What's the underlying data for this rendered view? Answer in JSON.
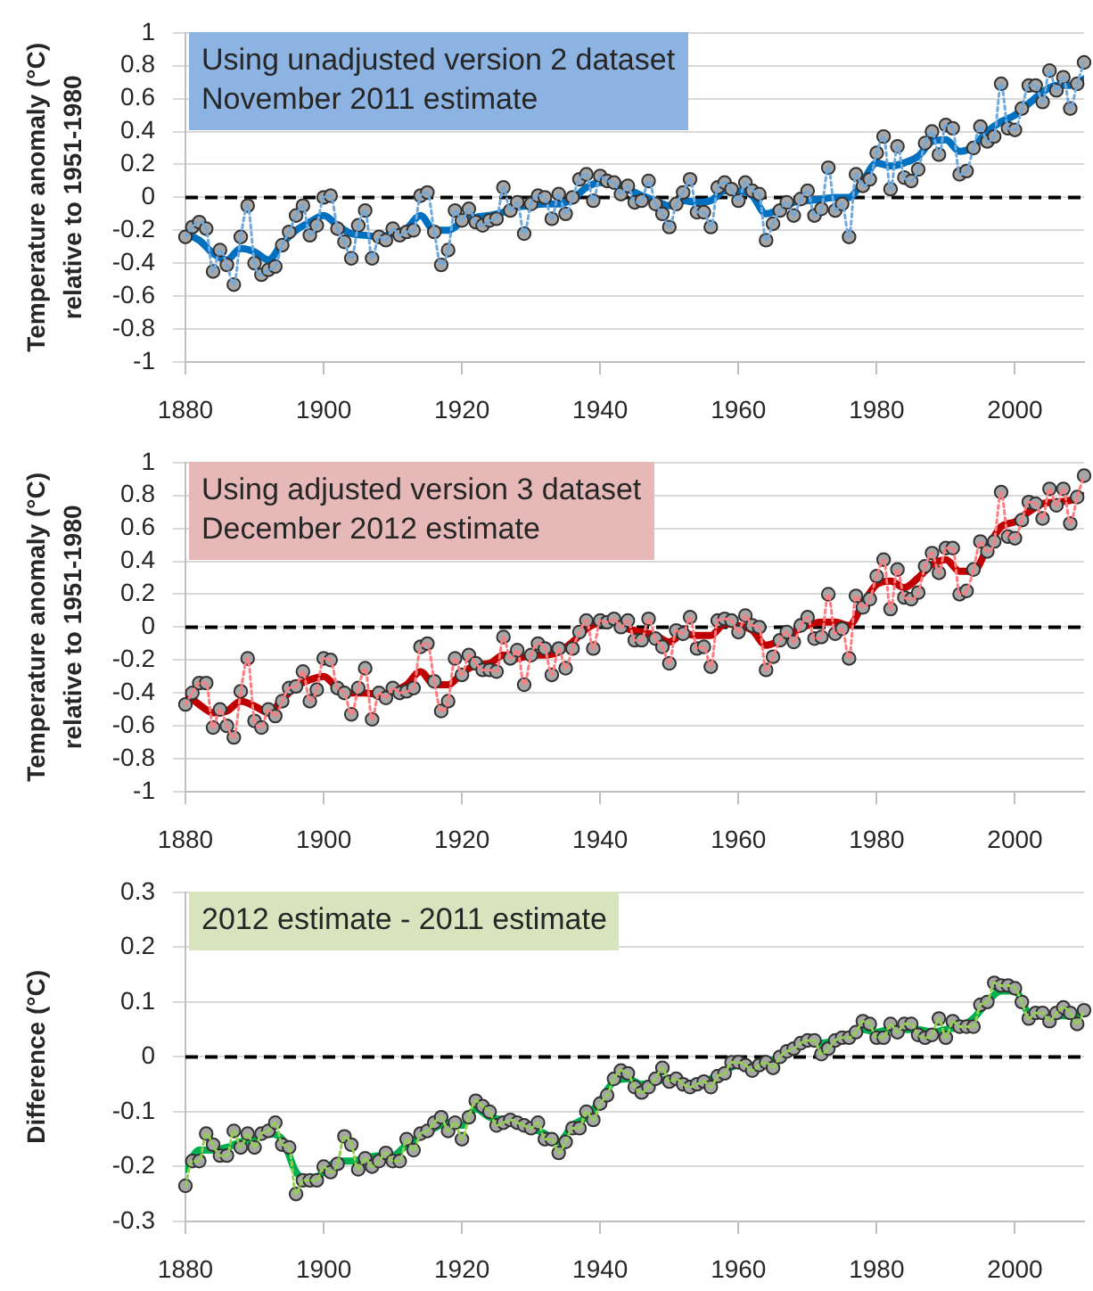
{
  "chart_data": [
    {
      "type": "line",
      "ylabel": "Temperature anomaly (°C) relative to 1951-1980",
      "annotations": [
        "Using unadjusted version 2 dataset",
        "November 2011 estimate"
      ],
      "x": [
        1880,
        1881,
        1882,
        1883,
        1884,
        1885,
        1886,
        1887,
        1888,
        1889,
        1890,
        1891,
        1892,
        1893,
        1894,
        1895,
        1896,
        1897,
        1898,
        1899,
        1900,
        1901,
        1902,
        1903,
        1904,
        1905,
        1906,
        1907,
        1908,
        1909,
        1910,
        1911,
        1912,
        1913,
        1914,
        1915,
        1916,
        1917,
        1918,
        1919,
        1920,
        1921,
        1922,
        1923,
        1924,
        1925,
        1926,
        1927,
        1928,
        1929,
        1930,
        1931,
        1932,
        1933,
        1934,
        1935,
        1936,
        1937,
        1938,
        1939,
        1940,
        1941,
        1942,
        1943,
        1944,
        1945,
        1946,
        1947,
        1948,
        1949,
        1950,
        1951,
        1952,
        1953,
        1954,
        1955,
        1956,
        1957,
        1958,
        1959,
        1960,
        1961,
        1962,
        1963,
        1964,
        1965,
        1966,
        1967,
        1968,
        1969,
        1970,
        1971,
        1972,
        1973,
        1974,
        1975,
        1976,
        1977,
        1978,
        1979,
        1980,
        1981,
        1982,
        1983,
        1984,
        1985,
        1986,
        1987,
        1988,
        1989,
        1990,
        1991,
        1992,
        1993,
        1994,
        1995,
        1996,
        1997,
        1998,
        1999,
        2000,
        2001,
        2002,
        2003,
        2004,
        2005,
        2006,
        2007,
        2008,
        2009,
        2010
      ],
      "xlim": [
        1880,
        2010
      ],
      "xticks": [
        1880,
        1900,
        1920,
        1940,
        1960,
        1980,
        2000
      ],
      "ylim": [
        -1,
        1
      ],
      "yticks": [
        -1,
        -0.8,
        -0.6,
        -0.4,
        -0.2,
        0,
        0.2,
        0.4,
        0.6,
        0.8,
        1
      ],
      "grid": "y",
      "marker": "circle",
      "ref_lines": [
        {
          "axis": "y",
          "value": 0,
          "color": "#000000",
          "line_style": "dashed"
        }
      ],
      "series": [
        {
          "type": "scatter",
          "color": "#a6a6a6",
          "values": [
            -0.24,
            -0.18,
            -0.15,
            -0.19,
            -0.45,
            -0.32,
            -0.41,
            -0.53,
            -0.24,
            -0.05,
            -0.4,
            -0.47,
            -0.44,
            -0.42,
            -0.29,
            -0.21,
            -0.11,
            -0.05,
            -0.23,
            -0.17,
            0,
            0.01,
            -0.19,
            -0.27,
            -0.37,
            -0.17,
            -0.08,
            -0.37,
            -0.24,
            -0.26,
            -0.19,
            -0.23,
            -0.21,
            -0.2,
            0.01,
            0.03,
            -0.21,
            -0.41,
            -0.32,
            -0.08,
            -0.14,
            -0.07,
            -0.15,
            -0.17,
            -0.14,
            -0.13,
            0.06,
            -0.08,
            -0.03,
            -0.22,
            -0.04,
            0.01,
            0,
            -0.13,
            0.02,
            -0.1,
            0,
            0.11,
            0.14,
            -0.02,
            0.13,
            0.1,
            0.09,
            0.02,
            0.07,
            -0.03,
            -0.02,
            0.1,
            -0.04,
            -0.1,
            -0.18,
            -0.04,
            0.03,
            0.11,
            -0.09,
            -0.09,
            -0.18,
            0.06,
            0.09,
            0.05,
            -0.02,
            0.09,
            0.04,
            0.02,
            -0.26,
            -0.16,
            -0.08,
            -0.03,
            -0.11,
            -0.01,
            0.04,
            -0.11,
            -0.07,
            0.18,
            -0.08,
            -0.04,
            -0.24,
            0.14,
            0.07,
            0.11,
            0.27,
            0.37,
            0.05,
            0.31,
            0.12,
            0.1,
            0.17,
            0.33,
            0.4,
            0.26,
            0.44,
            0.42,
            0.14,
            0.16,
            0.3,
            0.43,
            0.34,
            0.37,
            0.69,
            0.42,
            0.41,
            0.54,
            0.68,
            0.68,
            0.58,
            0.77,
            0.65,
            0.73,
            0.54,
            0.69,
            0.82
          ]
        },
        {
          "type": "line",
          "color": "#6fa8dc",
          "line_style": "dotted",
          "marker": "none",
          "values": [
            -0.24,
            -0.18,
            -0.15,
            -0.19,
            -0.45,
            -0.32,
            -0.41,
            -0.53,
            -0.24,
            -0.05,
            -0.4,
            -0.47,
            -0.44,
            -0.42,
            -0.29,
            -0.21,
            -0.11,
            -0.05,
            -0.23,
            -0.17,
            0,
            0.01,
            -0.19,
            -0.27,
            -0.37,
            -0.17,
            -0.08,
            -0.37,
            -0.24,
            -0.26,
            -0.19,
            -0.23,
            -0.21,
            -0.2,
            0.01,
            0.03,
            -0.21,
            -0.41,
            -0.32,
            -0.08,
            -0.14,
            -0.07,
            -0.15,
            -0.17,
            -0.14,
            -0.13,
            0.06,
            -0.08,
            -0.03,
            -0.22,
            -0.04,
            0.01,
            0,
            -0.13,
            0.02,
            -0.1,
            0,
            0.11,
            0.14,
            -0.02,
            0.13,
            0.1,
            0.09,
            0.02,
            0.07,
            -0.03,
            -0.02,
            0.1,
            -0.04,
            -0.1,
            -0.18,
            -0.04,
            0.03,
            0.11,
            -0.09,
            -0.09,
            -0.18,
            0.06,
            0.09,
            0.05,
            -0.02,
            0.09,
            0.04,
            0.02,
            -0.26,
            -0.16,
            -0.08,
            -0.03,
            -0.11,
            -0.01,
            0.04,
            -0.11,
            -0.07,
            0.18,
            -0.08,
            -0.04,
            -0.24,
            0.14,
            0.07,
            0.11,
            0.27,
            0.37,
            0.05,
            0.31,
            0.12,
            0.1,
            0.17,
            0.33,
            0.4,
            0.26,
            0.44,
            0.42,
            0.14,
            0.16,
            0.3,
            0.43,
            0.34,
            0.37,
            0.69,
            0.42,
            0.41,
            0.54,
            0.68,
            0.68,
            0.58,
            0.77,
            0.65,
            0.73,
            0.54,
            0.69,
            0.82
          ]
        },
        {
          "type": "line",
          "color": "#0070c0",
          "line_style": "solid",
          "marker": "none",
          "x": [
            1880,
            1882,
            1884,
            1886,
            1888,
            1890,
            1892,
            1894,
            1896,
            1898,
            1900,
            1902,
            1904,
            1906,
            1908,
            1910,
            1912,
            1914,
            1916,
            1918,
            1920,
            1922,
            1924,
            1926,
            1928,
            1930,
            1932,
            1934,
            1936,
            1938,
            1940,
            1942,
            1944,
            1946,
            1948,
            1950,
            1952,
            1954,
            1956,
            1958,
            1960,
            1962,
            1964,
            1966,
            1968,
            1970,
            1972,
            1974,
            1976,
            1978,
            1980,
            1982,
            1984,
            1986,
            1988,
            1990,
            1992,
            1994,
            1996,
            1998,
            2000,
            2002,
            2004,
            2006,
            2008,
            2010
          ],
          "values": [
            -0.22,
            -0.26,
            -0.34,
            -0.38,
            -0.31,
            -0.33,
            -0.38,
            -0.28,
            -0.2,
            -0.15,
            -0.11,
            -0.17,
            -0.22,
            -0.23,
            -0.24,
            -0.22,
            -0.19,
            -0.11,
            -0.2,
            -0.2,
            -0.15,
            -0.12,
            -0.11,
            -0.09,
            -0.06,
            -0.05,
            -0.04,
            -0.04,
            -0.01,
            0.06,
            0.09,
            0.09,
            0.05,
            0.01,
            -0.02,
            -0.05,
            -0.02,
            -0.03,
            -0.02,
            0.04,
            0.04,
            0.01,
            -0.1,
            -0.07,
            -0.03,
            -0.02,
            -0.01,
            0,
            0,
            0.1,
            0.21,
            0.19,
            0.21,
            0.25,
            0.34,
            0.35,
            0.28,
            0.31,
            0.4,
            0.46,
            0.5,
            0.57,
            0.64,
            0.68,
            0.68,
            0.72
          ]
        }
      ]
    },
    {
      "type": "line",
      "ylabel": "Temperature anomaly (°C) relative to 1951-1980",
      "annotations": [
        "Using adjusted version 3 dataset",
        "December 2012 estimate"
      ],
      "x": [
        1880,
        1881,
        1882,
        1883,
        1884,
        1885,
        1886,
        1887,
        1888,
        1889,
        1890,
        1891,
        1892,
        1893,
        1894,
        1895,
        1896,
        1897,
        1898,
        1899,
        1900,
        1901,
        1902,
        1903,
        1904,
        1905,
        1906,
        1907,
        1908,
        1909,
        1910,
        1911,
        1912,
        1913,
        1914,
        1915,
        1916,
        1917,
        1918,
        1919,
        1920,
        1921,
        1922,
        1923,
        1924,
        1925,
        1926,
        1927,
        1928,
        1929,
        1930,
        1931,
        1932,
        1933,
        1934,
        1935,
        1936,
        1937,
        1938,
        1939,
        1940,
        1941,
        1942,
        1943,
        1944,
        1945,
        1946,
        1947,
        1948,
        1949,
        1950,
        1951,
        1952,
        1953,
        1954,
        1955,
        1956,
        1957,
        1958,
        1959,
        1960,
        1961,
        1962,
        1963,
        1964,
        1965,
        1966,
        1967,
        1968,
        1969,
        1970,
        1971,
        1972,
        1973,
        1974,
        1975,
        1976,
        1977,
        1978,
        1979,
        1980,
        1981,
        1982,
        1983,
        1984,
        1985,
        1986,
        1987,
        1988,
        1989,
        1990,
        1991,
        1992,
        1993,
        1994,
        1995,
        1996,
        1997,
        1998,
        1999,
        2000,
        2001,
        2002,
        2003,
        2004,
        2005,
        2006,
        2007,
        2008,
        2009,
        2010
      ],
      "xlim": [
        1880,
        2010
      ],
      "xticks": [
        1880,
        1900,
        1920,
        1940,
        1960,
        1980,
        2000
      ],
      "ylim": [
        -1,
        1
      ],
      "yticks": [
        -1,
        -0.8,
        -0.6,
        -0.4,
        -0.2,
        0,
        0.2,
        0.4,
        0.6,
        0.8,
        1
      ],
      "grid": "y",
      "marker": "circle",
      "ref_lines": [
        {
          "axis": "y",
          "value": 0,
          "color": "#000000",
          "line_style": "dashed"
        }
      ],
      "series": [
        {
          "type": "scatter",
          "color": "#a6a6a6",
          "values": [
            -0.47,
            -0.4,
            -0.34,
            -0.34,
            -0.61,
            -0.5,
            -0.6,
            -0.67,
            -0.39,
            -0.19,
            -0.57,
            -0.61,
            -0.5,
            -0.54,
            -0.45,
            -0.37,
            -0.36,
            -0.27,
            -0.45,
            -0.38,
            -0.19,
            -0.2,
            -0.37,
            -0.4,
            -0.53,
            -0.37,
            -0.25,
            -0.56,
            -0.4,
            -0.43,
            -0.37,
            -0.4,
            -0.39,
            -0.37,
            -0.12,
            -0.1,
            -0.33,
            -0.51,
            -0.45,
            -0.19,
            -0.29,
            -0.17,
            -0.22,
            -0.26,
            -0.26,
            -0.27,
            -0.06,
            -0.19,
            -0.14,
            -0.35,
            -0.17,
            -0.1,
            -0.13,
            -0.29,
            -0.13,
            -0.25,
            -0.13,
            -0.03,
            0.04,
            -0.13,
            0.04,
            0.03,
            0.05,
            0,
            0.04,
            -0.08,
            -0.08,
            0.05,
            -0.07,
            -0.12,
            -0.22,
            -0.02,
            -0.04,
            0.06,
            -0.13,
            -0.12,
            -0.24,
            0.04,
            0.05,
            0.04,
            -0.03,
            0.07,
            0.01,
            0,
            -0.26,
            -0.18,
            -0.08,
            -0.03,
            -0.09,
            0.01,
            0.06,
            -0.07,
            -0.06,
            0.2,
            -0.04,
            -0.01,
            -0.19,
            0.19,
            0.12,
            0.17,
            0.31,
            0.41,
            0.11,
            0.35,
            0.18,
            0.17,
            0.21,
            0.37,
            0.45,
            0.33,
            0.48,
            0.48,
            0.2,
            0.22,
            0.35,
            0.52,
            0.46,
            0.52,
            0.82,
            0.55,
            0.54,
            0.65,
            0.76,
            0.75,
            0.66,
            0.84,
            0.74,
            0.84,
            0.63,
            0.79,
            0.92
          ]
        },
        {
          "type": "line",
          "color": "#ff7c80",
          "line_style": "dotted",
          "marker": "none",
          "values": [
            -0.47,
            -0.4,
            -0.34,
            -0.34,
            -0.61,
            -0.5,
            -0.6,
            -0.67,
            -0.39,
            -0.19,
            -0.57,
            -0.61,
            -0.5,
            -0.54,
            -0.45,
            -0.37,
            -0.36,
            -0.27,
            -0.45,
            -0.38,
            -0.19,
            -0.2,
            -0.37,
            -0.4,
            -0.53,
            -0.37,
            -0.25,
            -0.56,
            -0.4,
            -0.43,
            -0.37,
            -0.4,
            -0.39,
            -0.37,
            -0.12,
            -0.1,
            -0.33,
            -0.51,
            -0.45,
            -0.19,
            -0.29,
            -0.17,
            -0.22,
            -0.26,
            -0.26,
            -0.27,
            -0.06,
            -0.19,
            -0.14,
            -0.35,
            -0.17,
            -0.1,
            -0.13,
            -0.29,
            -0.13,
            -0.25,
            -0.13,
            -0.03,
            0.04,
            -0.13,
            0.04,
            0.03,
            0.05,
            0,
            0.04,
            -0.08,
            -0.08,
            0.05,
            -0.07,
            -0.12,
            -0.22,
            -0.02,
            -0.04,
            0.06,
            -0.13,
            -0.12,
            -0.24,
            0.04,
            0.05,
            0.04,
            -0.03,
            0.07,
            0.01,
            0,
            -0.26,
            -0.18,
            -0.08,
            -0.03,
            -0.09,
            0.01,
            0.06,
            -0.07,
            -0.06,
            0.2,
            -0.04,
            -0.01,
            -0.19,
            0.19,
            0.12,
            0.17,
            0.31,
            0.41,
            0.11,
            0.35,
            0.18,
            0.17,
            0.21,
            0.37,
            0.45,
            0.33,
            0.48,
            0.48,
            0.2,
            0.22,
            0.35,
            0.52,
            0.46,
            0.52,
            0.82,
            0.55,
            0.54,
            0.65,
            0.76,
            0.75,
            0.66,
            0.84,
            0.74,
            0.84,
            0.63,
            0.79,
            0.92
          ]
        },
        {
          "type": "line",
          "color": "#c00000",
          "line_style": "solid",
          "marker": "none",
          "x": [
            1880,
            1882,
            1884,
            1886,
            1888,
            1890,
            1892,
            1894,
            1896,
            1898,
            1900,
            1902,
            1904,
            1906,
            1908,
            1910,
            1912,
            1914,
            1916,
            1918,
            1920,
            1922,
            1924,
            1926,
            1928,
            1930,
            1932,
            1934,
            1936,
            1938,
            1940,
            1942,
            1944,
            1946,
            1948,
            1950,
            1952,
            1954,
            1956,
            1958,
            1960,
            1962,
            1964,
            1966,
            1968,
            1970,
            1972,
            1974,
            1976,
            1978,
            1980,
            1982,
            1984,
            1986,
            1988,
            1990,
            1992,
            1994,
            1996,
            1998,
            2000,
            2002,
            2004,
            2006,
            2008,
            2010
          ],
          "values": [
            -0.4,
            -0.47,
            -0.52,
            -0.51,
            -0.45,
            -0.48,
            -0.52,
            -0.44,
            -0.36,
            -0.32,
            -0.3,
            -0.37,
            -0.4,
            -0.4,
            -0.41,
            -0.39,
            -0.35,
            -0.27,
            -0.35,
            -0.35,
            -0.28,
            -0.23,
            -0.22,
            -0.17,
            -0.19,
            -0.17,
            -0.17,
            -0.15,
            -0.09,
            -0.01,
            0.03,
            0.04,
            -0.01,
            -0.03,
            -0.05,
            -0.09,
            -0.04,
            -0.05,
            -0.05,
            0.02,
            0.01,
            -0.02,
            -0.11,
            -0.08,
            -0.03,
            0.01,
            0.03,
            0.03,
            0.01,
            0.14,
            0.26,
            0.28,
            0.24,
            0.3,
            0.38,
            0.41,
            0.34,
            0.34,
            0.48,
            0.61,
            0.64,
            0.7,
            0.75,
            0.76,
            0.77,
            0.8
          ]
        }
      ]
    },
    {
      "type": "line",
      "ylabel": "Difference (°C)",
      "annotations": [
        "2012 estimate - 2011 estimate"
      ],
      "x": [
        1880,
        1881,
        1882,
        1883,
        1884,
        1885,
        1886,
        1887,
        1888,
        1889,
        1890,
        1891,
        1892,
        1893,
        1894,
        1895,
        1896,
        1897,
        1898,
        1899,
        1900,
        1901,
        1902,
        1903,
        1904,
        1905,
        1906,
        1907,
        1908,
        1909,
        1910,
        1911,
        1912,
        1913,
        1914,
        1915,
        1916,
        1917,
        1918,
        1919,
        1920,
        1921,
        1922,
        1923,
        1924,
        1925,
        1926,
        1927,
        1928,
        1929,
        1930,
        1931,
        1932,
        1933,
        1934,
        1935,
        1936,
        1937,
        1938,
        1939,
        1940,
        1941,
        1942,
        1943,
        1944,
        1945,
        1946,
        1947,
        1948,
        1949,
        1950,
        1951,
        1952,
        1953,
        1954,
        1955,
        1956,
        1957,
        1958,
        1959,
        1960,
        1961,
        1962,
        1963,
        1964,
        1965,
        1966,
        1967,
        1968,
        1969,
        1970,
        1971,
        1972,
        1973,
        1974,
        1975,
        1976,
        1977,
        1978,
        1979,
        1980,
        1981,
        1982,
        1983,
        1984,
        1985,
        1986,
        1987,
        1988,
        1989,
        1990,
        1991,
        1992,
        1993,
        1994,
        1995,
        1996,
        1997,
        1998,
        1999,
        2000,
        2001,
        2002,
        2003,
        2004,
        2005,
        2006,
        2007,
        2008,
        2009,
        2010
      ],
      "xlim": [
        1880,
        2010
      ],
      "xticks": [
        1880,
        1900,
        1920,
        1940,
        1960,
        1980,
        2000
      ],
      "ylim": [
        -0.3,
        0.3
      ],
      "yticks": [
        -0.3,
        -0.2,
        -0.1,
        0,
        0.1,
        0.2,
        0.3
      ],
      "grid": "y",
      "marker": "circle",
      "ref_lines": [
        {
          "axis": "y",
          "value": 0,
          "color": "#000000",
          "line_style": "dashed"
        }
      ],
      "series": [
        {
          "type": "scatter",
          "color": "#a6a6a6",
          "values": [
            -0.235,
            -0.19,
            -0.19,
            -0.14,
            -0.16,
            -0.18,
            -0.18,
            -0.135,
            -0.165,
            -0.14,
            -0.165,
            -0.14,
            -0.135,
            -0.12,
            -0.16,
            -0.165,
            -0.25,
            -0.225,
            -0.225,
            -0.225,
            -0.2,
            -0.21,
            -0.195,
            -0.145,
            -0.16,
            -0.205,
            -0.185,
            -0.2,
            -0.19,
            -0.175,
            -0.19,
            -0.19,
            -0.15,
            -0.17,
            -0.14,
            -0.135,
            -0.12,
            -0.11,
            -0.135,
            -0.12,
            -0.15,
            -0.11,
            -0.08,
            -0.09,
            -0.1,
            -0.125,
            -0.12,
            -0.115,
            -0.12,
            -0.125,
            -0.13,
            -0.12,
            -0.15,
            -0.15,
            -0.175,
            -0.155,
            -0.13,
            -0.13,
            -0.1,
            -0.115,
            -0.085,
            -0.07,
            -0.04,
            -0.025,
            -0.03,
            -0.055,
            -0.065,
            -0.055,
            -0.04,
            -0.02,
            -0.045,
            -0.04,
            -0.05,
            -0.055,
            -0.05,
            -0.045,
            -0.055,
            -0.035,
            -0.03,
            -0.01,
            -0.01,
            -0.015,
            -0.025,
            -0.015,
            -0.01,
            -0.02,
            0,
            0.01,
            0.015,
            0.025,
            0.03,
            0.03,
            0.005,
            0.015,
            0.03,
            0.035,
            0.035,
            0.045,
            0.065,
            0.06,
            0.035,
            0.035,
            0.06,
            0.045,
            0.06,
            0.06,
            0.04,
            0.035,
            0.04,
            0.07,
            0.035,
            0.065,
            0.055,
            0.055,
            0.055,
            0.095,
            0.1,
            0.135,
            0.13,
            0.13,
            0.125,
            0.1,
            0.07,
            0.08,
            0.08,
            0.065,
            0.08,
            0.09,
            0.08,
            0.06,
            0.085
          ]
        },
        {
          "type": "line",
          "color": "#92d050",
          "line_style": "dotted",
          "marker": "none",
          "values": [
            -0.235,
            -0.19,
            -0.19,
            -0.14,
            -0.16,
            -0.18,
            -0.18,
            -0.135,
            -0.165,
            -0.14,
            -0.165,
            -0.14,
            -0.135,
            -0.12,
            -0.16,
            -0.165,
            -0.25,
            -0.225,
            -0.225,
            -0.225,
            -0.2,
            -0.21,
            -0.195,
            -0.145,
            -0.16,
            -0.205,
            -0.185,
            -0.2,
            -0.19,
            -0.175,
            -0.19,
            -0.19,
            -0.15,
            -0.17,
            -0.14,
            -0.135,
            -0.12,
            -0.11,
            -0.135,
            -0.12,
            -0.15,
            -0.11,
            -0.08,
            -0.09,
            -0.1,
            -0.125,
            -0.12,
            -0.115,
            -0.12,
            -0.125,
            -0.13,
            -0.12,
            -0.15,
            -0.15,
            -0.175,
            -0.155,
            -0.13,
            -0.13,
            -0.1,
            -0.115,
            -0.085,
            -0.07,
            -0.04,
            -0.025,
            -0.03,
            -0.055,
            -0.065,
            -0.055,
            -0.04,
            -0.02,
            -0.045,
            -0.04,
            -0.05,
            -0.055,
            -0.05,
            -0.045,
            -0.055,
            -0.035,
            -0.03,
            -0.01,
            -0.01,
            -0.015,
            -0.025,
            -0.015,
            -0.01,
            -0.02,
            0,
            0.01,
            0.015,
            0.025,
            0.03,
            0.03,
            0.005,
            0.015,
            0.03,
            0.035,
            0.035,
            0.045,
            0.065,
            0.06,
            0.035,
            0.035,
            0.06,
            0.045,
            0.06,
            0.06,
            0.04,
            0.035,
            0.04,
            0.07,
            0.035,
            0.065,
            0.055,
            0.055,
            0.055,
            0.095,
            0.1,
            0.135,
            0.13,
            0.13,
            0.125,
            0.1,
            0.07,
            0.08,
            0.08,
            0.065,
            0.08,
            0.09,
            0.08,
            0.06,
            0.085
          ]
        },
        {
          "type": "line",
          "color": "#00b050",
          "line_style": "solid",
          "marker": "none",
          "x": [
            1880,
            1882,
            1884,
            1886,
            1888,
            1890,
            1892,
            1894,
            1896,
            1898,
            1900,
            1902,
            1904,
            1906,
            1908,
            1910,
            1912,
            1914,
            1916,
            1918,
            1920,
            1922,
            1924,
            1926,
            1928,
            1930,
            1932,
            1934,
            1936,
            1938,
            1940,
            1942,
            1944,
            1946,
            1948,
            1950,
            1952,
            1954,
            1956,
            1958,
            1960,
            1962,
            1964,
            1966,
            1968,
            1970,
            1972,
            1974,
            1976,
            1978,
            1980,
            1982,
            1984,
            1986,
            1988,
            1990,
            1992,
            1994,
            1996,
            1998,
            2000,
            2002,
            2004,
            2006,
            2008,
            2010
          ],
          "values": [
            -0.205,
            -0.17,
            -0.17,
            -0.165,
            -0.155,
            -0.15,
            -0.14,
            -0.15,
            -0.21,
            -0.225,
            -0.21,
            -0.19,
            -0.19,
            -0.185,
            -0.18,
            -0.18,
            -0.16,
            -0.145,
            -0.13,
            -0.12,
            -0.125,
            -0.095,
            -0.11,
            -0.115,
            -0.125,
            -0.13,
            -0.14,
            -0.155,
            -0.125,
            -0.11,
            -0.08,
            -0.045,
            -0.04,
            -0.05,
            -0.045,
            -0.04,
            -0.05,
            -0.05,
            -0.04,
            -0.025,
            -0.015,
            -0.015,
            -0.01,
            0,
            0.015,
            0.025,
            0.025,
            0.03,
            0.04,
            0.05,
            0.045,
            0.05,
            0.05,
            0.05,
            0.045,
            0.05,
            0.055,
            0.07,
            0.1,
            0.12,
            0.12,
            0.08,
            0.075,
            0.075,
            0.075,
            0.08
          ]
        }
      ]
    }
  ]
}
